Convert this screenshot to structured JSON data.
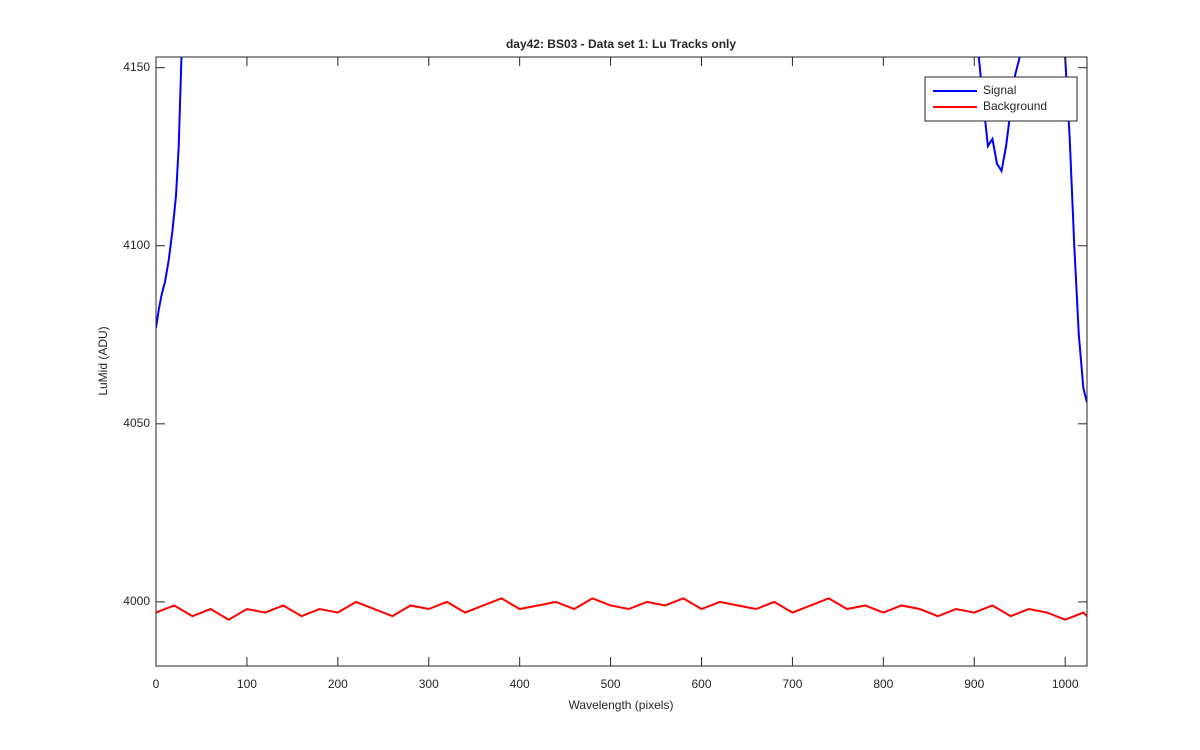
{
  "chart_data": {
    "type": "line",
    "title": "day42: BS03 - Data set 1: Lu Tracks only",
    "x_label": "Wavelength (pixels)",
    "y_label": "LuMid (ADU)",
    "xlim": [
      0,
      1024
    ],
    "ylim": [
      3982,
      4153
    ],
    "xticks": [
      0,
      100,
      200,
      300,
      400,
      500,
      600,
      700,
      800,
      900,
      1000
    ],
    "yticks": [
      4000,
      4050,
      4100,
      4150
    ],
    "legend": "northeast",
    "series": [
      {
        "name": "Signal",
        "color": "#0000ff",
        "x": [
          0,
          3,
          6,
          10,
          14,
          18,
          22,
          25,
          28,
          500,
          905,
          910,
          915,
          920,
          925,
          930,
          935,
          940,
          945,
          950,
          980,
          1000,
          1005,
          1010,
          1015,
          1020,
          1024
        ],
        "values": [
          4077,
          4082,
          4086,
          4090,
          4096,
          4104,
          4114,
          4128,
          4153,
          null,
          4153,
          4140,
          4128,
          4130,
          4123,
          4121,
          4128,
          4138,
          4148,
          4153,
          null,
          4153,
          4130,
          4100,
          4075,
          4060,
          4056
        ]
      },
      {
        "name": "Background",
        "color": "#ff0000",
        "x": [
          0,
          20,
          40,
          60,
          80,
          100,
          120,
          140,
          160,
          180,
          200,
          220,
          240,
          260,
          280,
          300,
          320,
          340,
          360,
          380,
          400,
          420,
          440,
          460,
          480,
          500,
          520,
          540,
          560,
          580,
          600,
          620,
          640,
          660,
          680,
          700,
          720,
          740,
          760,
          780,
          800,
          820,
          840,
          860,
          880,
          900,
          920,
          940,
          960,
          980,
          1000,
          1020,
          1024
        ],
        "values": [
          3997,
          3999,
          3996,
          3998,
          3995,
          3998,
          3997,
          3999,
          3996,
          3998,
          3997,
          4000,
          3998,
          3996,
          3999,
          3998,
          4000,
          3997,
          3999,
          4001,
          3998,
          3999,
          4000,
          3998,
          4001,
          3999,
          3998,
          4000,
          3999,
          4001,
          3998,
          4000,
          3999,
          3998,
          4000,
          3997,
          3999,
          4001,
          3998,
          3999,
          3997,
          3999,
          3998,
          3996,
          3998,
          3997,
          3999,
          3996,
          3998,
          3997,
          3995,
          3997,
          3996
        ]
      }
    ]
  }
}
